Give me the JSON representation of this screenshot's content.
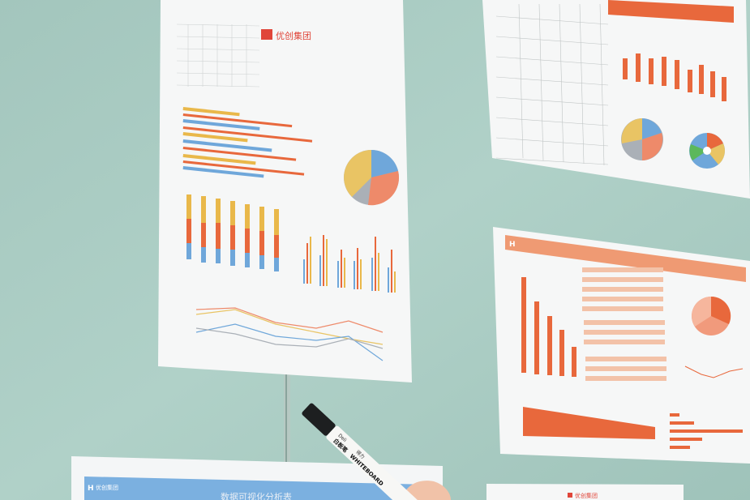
{
  "scene": {
    "description_colors": {
      "glass": "#a9cbc2",
      "paper": "#f7f8f8",
      "orange": "#e8683c",
      "blue": "#6fa7da",
      "yellow": "#e9b84a"
    },
    "logo_text": "优创集团",
    "bottom_poster_title": "数据可视化分析表",
    "marker": {
      "brand": "得力",
      "label": "白板笔",
      "text": "WHITEBOARD",
      "brand_latin": "Deli"
    }
  }
}
